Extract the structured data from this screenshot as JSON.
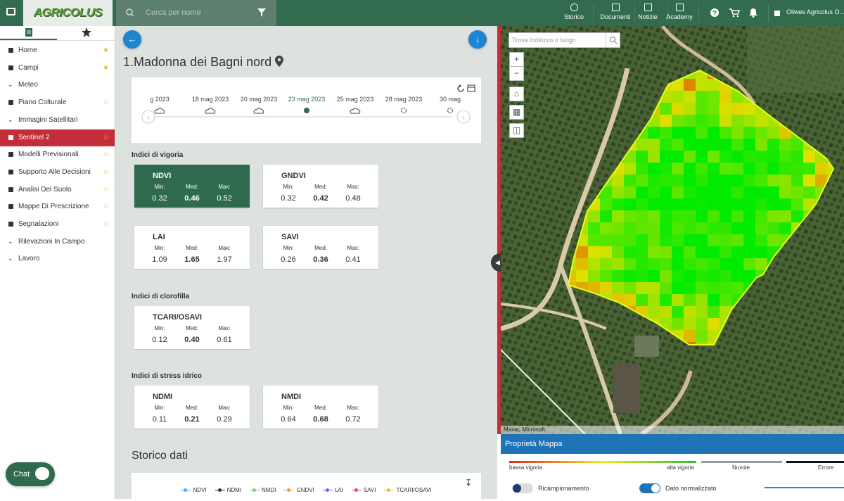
{
  "header": {
    "logo": "AGRICOLUS",
    "search_placeholder": "Cerca per nome",
    "nav": [
      "Storico",
      "Documenti",
      "Notizie",
      "Academy"
    ],
    "user": "Oliwes Agricolus O..."
  },
  "sidebar": {
    "items": [
      {
        "label": "Home",
        "star": "filled"
      },
      {
        "label": "Campi",
        "star": "filled"
      },
      {
        "label": "Meteo",
        "expandable": true
      },
      {
        "label": "Piano Colturale",
        "star": "outline"
      },
      {
        "label": "Immagini Satellitari",
        "expandable": true
      },
      {
        "label": "Sentinel 2",
        "star": "outline",
        "selected": true
      },
      {
        "label": "Modelli Previsionali",
        "star": "outline"
      },
      {
        "label": "Supporto Alle Decisioni",
        "star": "outline"
      },
      {
        "label": "Analisi Del Suolo",
        "star": "outline"
      },
      {
        "label": "Mappe Di Prescrizione",
        "star": "outline"
      },
      {
        "label": "Segnalazioni",
        "star": "outline"
      },
      {
        "label": "Rilevazioni In Campo",
        "expandable": true
      },
      {
        "label": "Lavoro",
        "expandable": true
      }
    ],
    "chat": "Chat"
  },
  "field": {
    "title": "1.Madonna dei Bagni nord"
  },
  "timeline": {
    "dates": [
      "g 2023",
      "18 mag 2023",
      "20 mag 2023",
      "23 mag 2023",
      "25 mag 2023",
      "28 mag 2023",
      "30 mag"
    ],
    "selected": 3
  },
  "stat_labels": {
    "min": "Min:",
    "med": "Med:",
    "max": "Max:"
  },
  "index_groups": [
    {
      "title": "Indici di vigoria",
      "cards": [
        {
          "name": "NDVI",
          "min": "0.32",
          "med": "0.46",
          "max": "0.52",
          "selected": true
        },
        {
          "name": "GNDVI",
          "min": "0.32",
          "med": "0.42",
          "max": "0.48"
        },
        {
          "name": "LAI",
          "min": "1.09",
          "med": "1.65",
          "max": "1.97"
        },
        {
          "name": "SAVI",
          "min": "0.26",
          "med": "0.36",
          "max": "0.41"
        }
      ]
    },
    {
      "title": "Indici di clorofilla",
      "cards": [
        {
          "name": "TCARI/OSAVI",
          "min": "0.12",
          "med": "0.40",
          "max": "0.61"
        }
      ]
    },
    {
      "title": "Indici di stress idrico",
      "cards": [
        {
          "name": "NDMI",
          "min": "0.11",
          "med": "0.21",
          "max": "0.29"
        },
        {
          "name": "NMDI",
          "min": "0.64",
          "med": "0.68",
          "max": "0.72"
        }
      ]
    }
  ],
  "history": {
    "title": "Storico dati",
    "legend": [
      {
        "name": "NDVI",
        "color": "#5aa9e6"
      },
      {
        "name": "NDMI",
        "color": "#333333"
      },
      {
        "name": "NMDI",
        "color": "#6fd36f"
      },
      {
        "name": "GNDVI",
        "color": "#f29a38"
      },
      {
        "name": "LAI",
        "color": "#6a6ee0"
      },
      {
        "name": "SAVI",
        "color": "#e0457a"
      },
      {
        "name": "TCARI/OSAVI",
        "color": "#e8c21e"
      }
    ]
  },
  "map": {
    "search_placeholder": "Trova indirizzo o luogo",
    "attribution": "Maxar, Microsoft",
    "panel_title": "Proprietà Mappa",
    "legend": {
      "low": "bassa vigoria",
      "high": "alta vigoria",
      "clouds": "Nuvole",
      "error": "Errore"
    },
    "toggles": [
      {
        "label": "Ricampionamento",
        "on": false
      },
      {
        "label": "Dato normalizzato",
        "on": true
      }
    ]
  }
}
